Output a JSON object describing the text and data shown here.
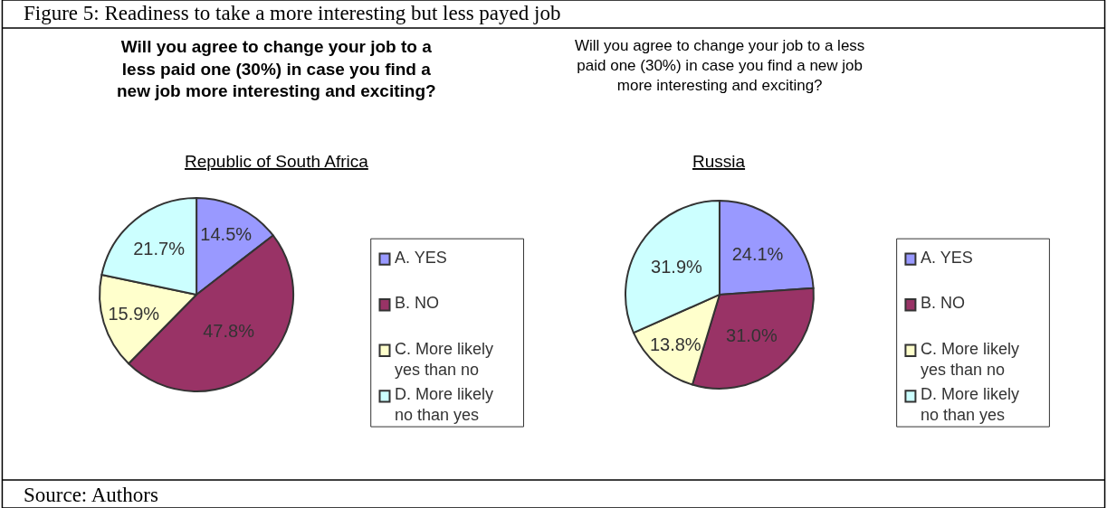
{
  "chart_data": [
    {
      "type": "pie",
      "title": "Will you agree to change your job to a less paid one (30%) in case you find a new job more interesting and exciting?",
      "subtitle": "Republic of South Africa",
      "annotations": [
        "Figure 5: Readiness to take a more interesting but less payed job"
      ],
      "categories": [
        "A. YES",
        "B. NO",
        "C. More likely yes than no",
        "D. More likely no than yes"
      ],
      "values": [
        14.5,
        47.8,
        15.9,
        21.7
      ],
      "value_labels": [
        "14.5%",
        "47.8%",
        "15.9%",
        "21.7%"
      ],
      "colors": [
        "#9999ff",
        "#993366",
        "#ffffcc",
        "#ccffff"
      ],
      "legend": "right"
    },
    {
      "type": "pie",
      "title": "Will you agree to change your job to a less paid one (30%) in case you find a new job more interesting and exciting?",
      "subtitle": "Russia",
      "annotations": [
        "Source: Authors"
      ],
      "categories": [
        "A. YES",
        "B. NO",
        "C. More likely yes than no",
        "D. More likely no than yes"
      ],
      "values": [
        24.1,
        31.0,
        13.8,
        31.9
      ],
      "value_labels": [
        "24.1%",
        "31.0%",
        "13.8%",
        "31.9%"
      ],
      "colors": [
        "#9999ff",
        "#993366",
        "#ffffcc",
        "#ccffff"
      ],
      "legend": "right"
    }
  ]
}
